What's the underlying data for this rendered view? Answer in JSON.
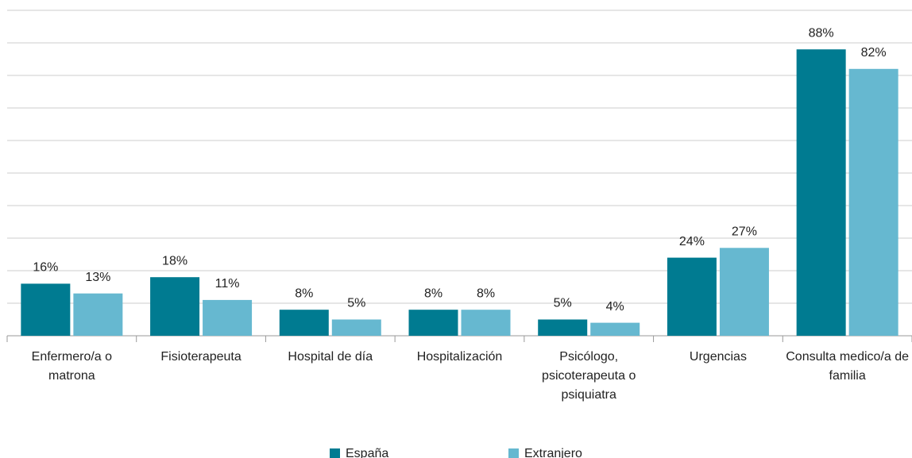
{
  "chart_data": {
    "type": "bar",
    "categories": [
      "Enfermero/a o matrona",
      "Fisioterapeuta",
      "Hospital de día",
      "Hospitalización",
      "Psicólogo, psicoterapeuta o psiquiatra",
      "Urgencias",
      "Consulta medico/a de familia"
    ],
    "series": [
      {
        "name": "España",
        "color": "#007b91",
        "values": [
          16,
          18,
          8,
          8,
          5,
          24,
          88
        ],
        "value_labels": [
          "16%",
          "18%",
          "8%",
          "8%",
          "5%",
          "24%",
          "88%"
        ]
      },
      {
        "name": "Extranjero",
        "color": "#66b8d0",
        "values": [
          13,
          11,
          5,
          8,
          4,
          27,
          82
        ],
        "value_labels": [
          "13%",
          "11%",
          "5%",
          "8%",
          "4%",
          "27%",
          "82%"
        ]
      }
    ],
    "ylim": [
      0,
      100
    ],
    "yticks": [
      0,
      10,
      20,
      30,
      40,
      50,
      60,
      70,
      80,
      90,
      100
    ],
    "grid": true,
    "legend": "bottom"
  }
}
